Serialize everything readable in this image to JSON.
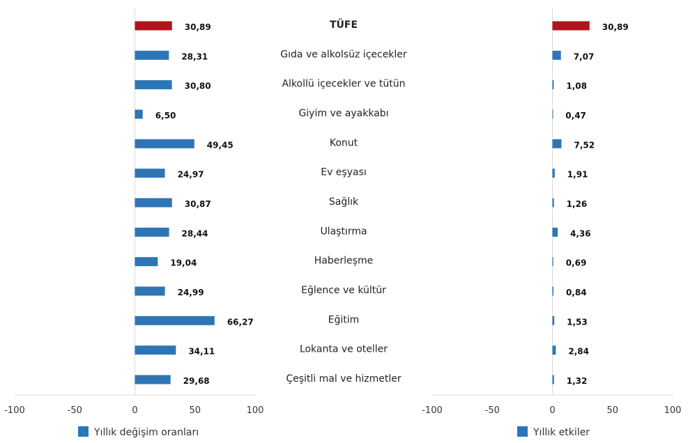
{
  "chart_data": [
    {
      "type": "bar",
      "orientation": "horizontal",
      "categories": [
        "TÜFE",
        "Gıda ve alkolsüz içecekler",
        "Alkollü içecekler ve tütün",
        "Giyim ve ayakkabı",
        "Konut",
        "Ev eşyası",
        "Sağlık",
        "Ulaştırma",
        "Haberleşme",
        "Eğlence ve kültür",
        "Eğitim",
        "Lokanta ve oteller",
        "Çeşitli mal ve hizmetler"
      ],
      "series": [
        {
          "name": "Yıllık değişim oranları",
          "values": [
            30.89,
            28.31,
            30.8,
            6.5,
            49.45,
            24.97,
            30.87,
            28.44,
            19.04,
            24.99,
            66.27,
            34.11,
            29.68
          ]
        }
      ],
      "value_labels": [
        "30,89",
        "28,31",
        "30,80",
        "6,50",
        "49,45",
        "24,97",
        "30,87",
        "28,44",
        "19,04",
        "24,99",
        "66,27",
        "34,11",
        "29,68"
      ],
      "xlim": [
        -100,
        100
      ],
      "x_ticks": [
        "-100",
        "-50",
        "0",
        "50",
        "100"
      ],
      "legend": "bottom",
      "colors": {
        "highlight": "#B0141C",
        "bar": "#2E75B6"
      }
    },
    {
      "type": "bar",
      "orientation": "horizontal",
      "categories": [
        "TÜFE",
        "Gıda ve alkolsüz içecekler",
        "Alkollü içecekler ve tütün",
        "Giyim ve ayakkabı",
        "Konut",
        "Ev eşyası",
        "Sağlık",
        "Ulaştırma",
        "Haberleşme",
        "Eğlence ve kültür",
        "Eğitim",
        "Lokanta ve oteller",
        "Çeşitli mal ve hizmetler"
      ],
      "series": [
        {
          "name": "Yıllık etkiler",
          "values": [
            30.89,
            7.07,
            1.08,
            0.47,
            7.52,
            1.91,
            1.26,
            4.36,
            0.69,
            0.84,
            1.53,
            2.84,
            1.32
          ]
        }
      ],
      "value_labels": [
        "30,89",
        "7,07",
        "1,08",
        "0,47",
        "7,52",
        "1,91",
        "1,26",
        "4,36",
        "0,69",
        "0,84",
        "1,53",
        "2,84",
        "1,32"
      ],
      "xlim": [
        -100,
        100
      ],
      "x_ticks": [
        "-100",
        "-50",
        "0",
        "50",
        "100"
      ],
      "legend": "bottom",
      "colors": {
        "highlight": "#B0141C",
        "bar": "#2E75B6"
      }
    }
  ]
}
